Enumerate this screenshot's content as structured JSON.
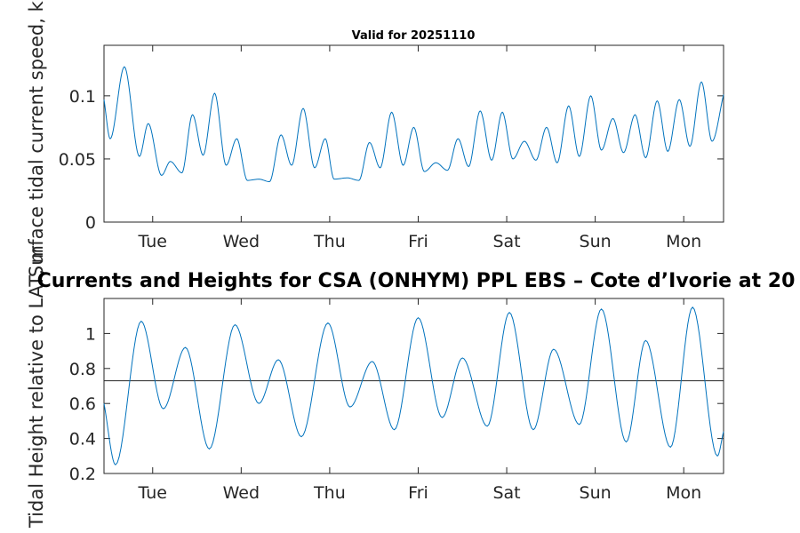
{
  "colors": {
    "series": "#0072bd",
    "axis": "#262626",
    "title": "#000000",
    "background": "#ffffff"
  },
  "chart_data": [
    {
      "type": "line",
      "title": "Valid for 20251110",
      "ylabel": "Surface tidal current speed, kn",
      "xlabel": "",
      "xlim": [
        0,
        7
      ],
      "ylim": [
        0,
        0.14
      ],
      "yticks": [
        0,
        0.05,
        0.1
      ],
      "ytick_labels": [
        "0",
        "0.05",
        "0.1"
      ],
      "xticks": [
        0.55,
        1.55,
        2.55,
        3.55,
        4.55,
        5.55,
        6.55
      ],
      "xtick_labels": [
        "Tue",
        "Wed",
        "Thu",
        "Fri",
        "Sat",
        "Sun",
        "Mon"
      ],
      "series": [
        {
          "name": "current speed",
          "x": [
            0,
            0.07,
            0.23,
            0.4,
            0.5,
            0.65,
            0.75,
            0.88,
            1.0,
            1.12,
            1.25,
            1.38,
            1.5,
            1.62,
            1.75,
            1.87,
            2.0,
            2.12,
            2.25,
            2.38,
            2.5,
            2.6,
            2.75,
            2.88,
            3.0,
            3.12,
            3.25,
            3.38,
            3.5,
            3.62,
            3.75,
            3.88,
            4.0,
            4.12,
            4.25,
            4.38,
            4.5,
            4.62,
            4.75,
            4.88,
            5.0,
            5.12,
            5.25,
            5.37,
            5.5,
            5.62,
            5.75,
            5.87,
            6.0,
            6.12,
            6.25,
            6.37,
            6.5,
            6.62,
            6.75,
            6.87,
            7.0
          ],
          "values": [
            0.097,
            0.066,
            0.123,
            0.052,
            0.078,
            0.037,
            0.048,
            0.039,
            0.085,
            0.053,
            0.102,
            0.045,
            0.066,
            0.033,
            0.034,
            0.032,
            0.069,
            0.045,
            0.09,
            0.043,
            0.066,
            0.034,
            0.035,
            0.033,
            0.063,
            0.043,
            0.087,
            0.045,
            0.075,
            0.04,
            0.047,
            0.041,
            0.066,
            0.044,
            0.088,
            0.049,
            0.087,
            0.05,
            0.064,
            0.049,
            0.075,
            0.047,
            0.092,
            0.052,
            0.1,
            0.057,
            0.082,
            0.055,
            0.085,
            0.051,
            0.096,
            0.056,
            0.097,
            0.06,
            0.111,
            0.064,
            0.101
          ]
        }
      ]
    },
    {
      "type": "line",
      "title": "Currents and Heights for CSA (ONHYM) PPL EBS  – Cote d’Ivorie at 20",
      "ylabel": "Tidal Height relative to LAT, m",
      "xlabel": "",
      "xlim": [
        0,
        7
      ],
      "ylim": [
        0.2,
        1.2
      ],
      "yticks": [
        0.2,
        0.4,
        0.6,
        0.8,
        1
      ],
      "ytick_labels": [
        "0.2",
        "0.4",
        "0.6",
        "0.8",
        "1"
      ],
      "xticks": [
        0.55,
        1.55,
        2.55,
        3.55,
        4.55,
        5.55,
        6.55
      ],
      "xtick_labels": [
        "Tue",
        "Wed",
        "Thu",
        "Fri",
        "Sat",
        "Sun",
        "Mon"
      ],
      "reference_line": 0.73,
      "series": [
        {
          "name": "tidal height",
          "x": [
            0,
            0.13,
            0.42,
            0.67,
            0.92,
            1.19,
            1.48,
            1.75,
            1.97,
            2.23,
            2.53,
            2.78,
            3.03,
            3.28,
            3.55,
            3.82,
            4.05,
            4.33,
            4.58,
            4.85,
            5.08,
            5.37,
            5.62,
            5.9,
            6.12,
            6.4,
            6.65,
            6.93,
            7.0
          ],
          "values": [
            0.6,
            0.25,
            1.07,
            0.57,
            0.92,
            0.34,
            1.05,
            0.6,
            0.85,
            0.41,
            1.06,
            0.58,
            0.84,
            0.45,
            1.09,
            0.52,
            0.86,
            0.47,
            1.12,
            0.45,
            0.91,
            0.48,
            1.14,
            0.38,
            0.96,
            0.35,
            1.15,
            0.3,
            0.44
          ]
        }
      ]
    }
  ]
}
